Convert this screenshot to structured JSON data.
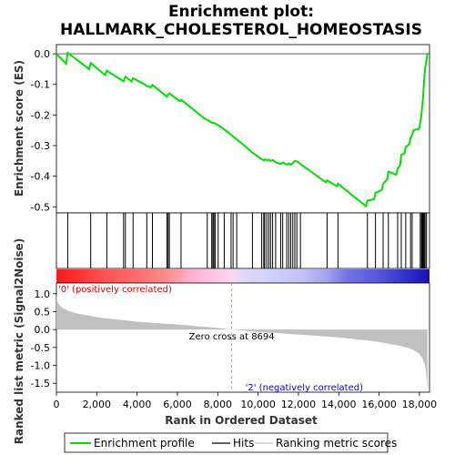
{
  "title_line1": "Enrichment plot:",
  "title_line2": "HALLMARK_CHOLESTEROL_HOMEOSTASIS",
  "colors": {
    "profile": "#00e000",
    "hits": "#000000",
    "metric_fill": "#c0c0c0",
    "positive_text": "#dd0000",
    "negative_text": "#0000cc"
  },
  "chart_data": {
    "type": "line",
    "x_max": 18500,
    "x_ticks": [
      0,
      2000,
      4000,
      6000,
      8000,
      10000,
      12000,
      14000,
      16000,
      18000
    ],
    "x_tick_labels": [
      "0",
      "2,000",
      "4,000",
      "6,000",
      "8,000",
      "10,000",
      "12,000",
      "14,000",
      "16,000",
      "18,000"
    ],
    "xlabel": "Rank in Ordered Dataset",
    "es_panel": {
      "ylabel": "Enrichment score (ES)",
      "ylim": [
        -0.52,
        0.03
      ],
      "y_ticks": [
        0.0,
        -0.1,
        -0.2,
        -0.3,
        -0.4,
        -0.5
      ],
      "y_tick_labels": [
        "0.0",
        "-0.1",
        "-0.2",
        "-0.3",
        "-0.4",
        "-0.5"
      ],
      "series_name": "Enrichment profile",
      "points": [
        [
          0,
          0.0
        ],
        [
          480,
          -0.032
        ],
        [
          560,
          0.003
        ],
        [
          1620,
          -0.05
        ],
        [
          1700,
          -0.03
        ],
        [
          2420,
          -0.07
        ],
        [
          2500,
          -0.055
        ],
        [
          3330,
          -0.09
        ],
        [
          3420,
          -0.075
        ],
        [
          3720,
          -0.09
        ],
        [
          3800,
          -0.08
        ],
        [
          4380,
          -0.1
        ],
        [
          4480,
          -0.105
        ],
        [
          4680,
          -0.11
        ],
        [
          4760,
          -0.102
        ],
        [
          5480,
          -0.14
        ],
        [
          5540,
          -0.133
        ],
        [
          5600,
          -0.13
        ],
        [
          6120,
          -0.155
        ],
        [
          6180,
          -0.15
        ],
        [
          7350,
          -0.212
        ],
        [
          7550,
          -0.218
        ],
        [
          7700,
          -0.225
        ],
        [
          7760,
          -0.226
        ],
        [
          7810,
          -0.225
        ],
        [
          7870,
          -0.228
        ],
        [
          8020,
          -0.233
        ],
        [
          8320,
          -0.247
        ],
        [
          8660,
          -0.265
        ],
        [
          8760,
          -0.27
        ],
        [
          9320,
          -0.3
        ],
        [
          9720,
          -0.323
        ],
        [
          10180,
          -0.345
        ],
        [
          10280,
          -0.348
        ],
        [
          10330,
          -0.345
        ],
        [
          10430,
          -0.348
        ],
        [
          10530,
          -0.346
        ],
        [
          10620,
          -0.35
        ],
        [
          10720,
          -0.347
        ],
        [
          10870,
          -0.355
        ],
        [
          11120,
          -0.36
        ],
        [
          11220,
          -0.355
        ],
        [
          11420,
          -0.362
        ],
        [
          11520,
          -0.358
        ],
        [
          11620,
          -0.362
        ],
        [
          11720,
          -0.357
        ],
        [
          11820,
          -0.35
        ],
        [
          11920,
          -0.352
        ],
        [
          12100,
          -0.36
        ],
        [
          13360,
          -0.42
        ],
        [
          13420,
          -0.413
        ],
        [
          13900,
          -0.433
        ],
        [
          13960,
          -0.425
        ],
        [
          15350,
          -0.498
        ],
        [
          15420,
          -0.48
        ],
        [
          15750,
          -0.475
        ],
        [
          15820,
          -0.455
        ],
        [
          16130,
          -0.445
        ],
        [
          16200,
          -0.425
        ],
        [
          16400,
          -0.41
        ],
        [
          16460,
          -0.385
        ],
        [
          16850,
          -0.395
        ],
        [
          16920,
          -0.375
        ],
        [
          17040,
          -0.365
        ],
        [
          17100,
          -0.33
        ],
        [
          17260,
          -0.325
        ],
        [
          17320,
          -0.305
        ],
        [
          17500,
          -0.295
        ],
        [
          17560,
          -0.275
        ],
        [
          17640,
          -0.265
        ],
        [
          17700,
          -0.25
        ],
        [
          17980,
          -0.245
        ],
        [
          18040,
          -0.225
        ],
        [
          18100,
          -0.2
        ],
        [
          18140,
          -0.17
        ],
        [
          18170,
          -0.15
        ],
        [
          18200,
          -0.12
        ],
        [
          18240,
          -0.08
        ],
        [
          18280,
          -0.05
        ],
        [
          18350,
          -0.02
        ],
        [
          18400,
          0.003
        ]
      ]
    },
    "hits_panel": {
      "series_name": "Hits",
      "positions": [
        560,
        1700,
        2500,
        3330,
        3420,
        3800,
        4480,
        4760,
        5480,
        5540,
        5600,
        6180,
        7480,
        7700,
        7760,
        7810,
        7870,
        8020,
        8320,
        8660,
        8760,
        8940,
        9720,
        10180,
        10280,
        10330,
        10430,
        10530,
        10620,
        10720,
        10870,
        11120,
        11220,
        11420,
        11520,
        11620,
        11720,
        11820,
        11920,
        12100,
        13420,
        13960,
        15420,
        15820,
        16200,
        16460,
        16920,
        17100,
        17320,
        17560,
        17640,
        18040,
        18100,
        18140,
        18170,
        18200,
        18240,
        18280,
        18350
      ]
    },
    "colorbar": {
      "stops": [
        [
          0,
          "#ee1c1c"
        ],
        [
          0.04,
          "#ff2a2a"
        ],
        [
          0.12,
          "#ff4e4e"
        ],
        [
          0.22,
          "#ff6e6e"
        ],
        [
          0.3,
          "#ff8f8f"
        ],
        [
          0.36,
          "#ffb0d0"
        ],
        [
          0.42,
          "#ffc4e8"
        ],
        [
          0.47,
          "#fdd6f3"
        ],
        [
          0.5,
          "#e0d8f8"
        ],
        [
          0.56,
          "#d6d4fa"
        ],
        [
          0.66,
          "#c2c0f6"
        ],
        [
          0.72,
          "#a6a6f0"
        ],
        [
          0.78,
          "#7272e4"
        ],
        [
          0.86,
          "#5858dc"
        ],
        [
          0.93,
          "#3434cc"
        ],
        [
          1,
          "#1a10b4"
        ]
      ]
    },
    "metric_panel": {
      "ylabel": "Ranked list metric (Signal2Noise)",
      "ylim": [
        -1.75,
        1.3
      ],
      "y_ticks": [
        1.0,
        0.5,
        0.0,
        -0.5,
        -1.0,
        -1.5
      ],
      "y_tick_labels": [
        "1.0",
        "0.5",
        "0.0",
        "-0.5",
        "-1.0",
        "-1.5"
      ],
      "series_name": "Ranking metric scores",
      "points": [
        [
          0,
          0.95
        ],
        [
          50,
          0.78
        ],
        [
          150,
          0.68
        ],
        [
          300,
          0.6
        ],
        [
          600,
          0.52
        ],
        [
          1000,
          0.45
        ],
        [
          1500,
          0.4
        ],
        [
          2000,
          0.35
        ],
        [
          2500,
          0.31
        ],
        [
          3000,
          0.28
        ],
        [
          3500,
          0.25
        ],
        [
          4000,
          0.22
        ],
        [
          4500,
          0.2
        ],
        [
          5000,
          0.18
        ],
        [
          5500,
          0.16
        ],
        [
          6000,
          0.14
        ],
        [
          6500,
          0.12
        ],
        [
          7000,
          0.09
        ],
        [
          7500,
          0.07
        ],
        [
          8000,
          0.045
        ],
        [
          8694,
          0.0
        ],
        [
          9500,
          -0.04
        ],
        [
          10000,
          -0.065
        ],
        [
          10500,
          -0.085
        ],
        [
          11000,
          -0.1
        ],
        [
          11500,
          -0.12
        ],
        [
          12000,
          -0.14
        ],
        [
          12500,
          -0.16
        ],
        [
          13000,
          -0.18
        ],
        [
          13500,
          -0.2
        ],
        [
          14000,
          -0.22
        ],
        [
          14500,
          -0.25
        ],
        [
          15000,
          -0.28
        ],
        [
          15500,
          -0.31
        ],
        [
          16000,
          -0.35
        ],
        [
          16500,
          -0.4
        ],
        [
          17000,
          -0.45
        ],
        [
          17500,
          -0.52
        ],
        [
          17800,
          -0.6
        ],
        [
          18000,
          -0.68
        ],
        [
          18150,
          -0.8
        ],
        [
          18250,
          -0.95
        ],
        [
          18320,
          -1.15
        ],
        [
          18370,
          -1.45
        ],
        [
          18400,
          -1.7
        ]
      ],
      "zero_cross": 8694,
      "zero_cross_label": "Zero cross at 8694",
      "positive_label": "'0' (positively correlated)",
      "negative_label": "'2' (negatively correlated)"
    },
    "legend": [
      "Enrichment profile",
      "Hits",
      "Ranking metric scores"
    ]
  }
}
